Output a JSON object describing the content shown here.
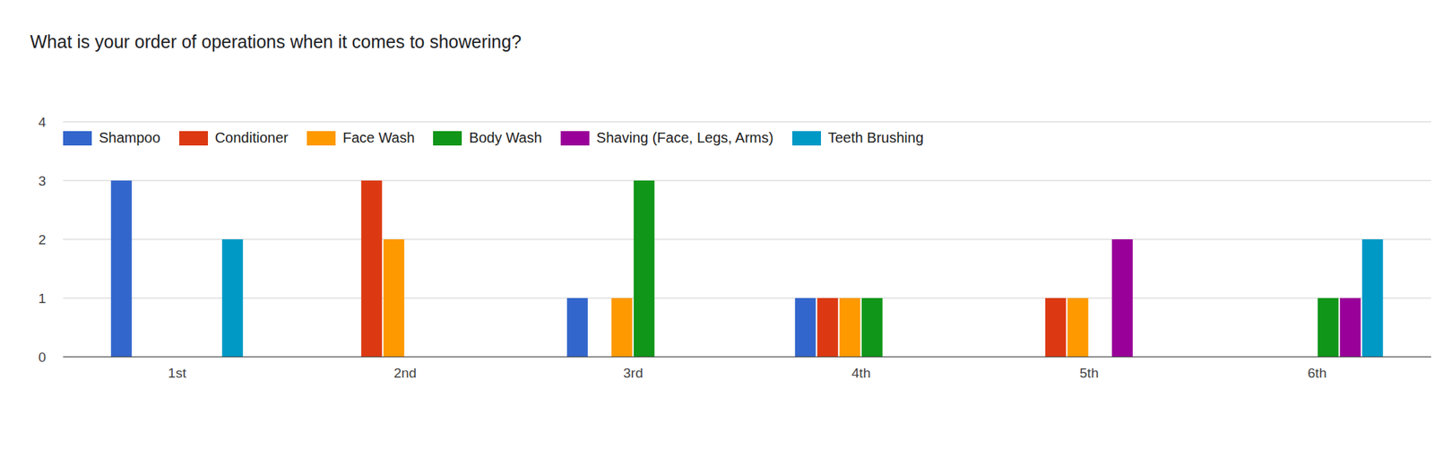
{
  "chart_data": {
    "type": "bar",
    "title": "What is your order of operations when it comes to showering?",
    "categories": [
      "1st",
      "2nd",
      "3rd",
      "4th",
      "5th",
      "6th"
    ],
    "series": [
      {
        "name": "Shampoo",
        "color": "#3366cc",
        "values": [
          3,
          0,
          1,
          1,
          0,
          0
        ]
      },
      {
        "name": "Conditioner",
        "color": "#dc3912",
        "values": [
          0,
          3,
          0,
          1,
          1,
          0
        ]
      },
      {
        "name": "Face Wash",
        "color": "#ff9900",
        "values": [
          0,
          2,
          1,
          1,
          1,
          0
        ]
      },
      {
        "name": "Body Wash",
        "color": "#109618",
        "values": [
          0,
          0,
          3,
          1,
          0,
          1
        ]
      },
      {
        "name": "Shaving (Face, Legs, Arms)",
        "color": "#990099",
        "values": [
          0,
          0,
          0,
          0,
          2,
          1
        ]
      },
      {
        "name": "Teeth Brushing",
        "color": "#0099c6",
        "values": [
          2,
          0,
          0,
          0,
          0,
          2
        ]
      }
    ],
    "ylim": [
      0,
      4
    ],
    "yticks": [
      0,
      1,
      2,
      3,
      4
    ],
    "grid": true,
    "legend": "top-left"
  }
}
